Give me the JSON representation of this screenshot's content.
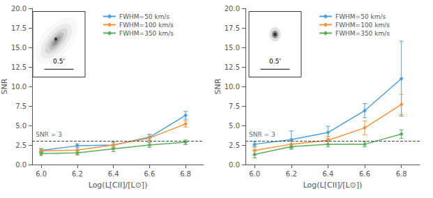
{
  "chart_data": [
    {
      "type": "line",
      "x": [
        6.0,
        6.2,
        6.4,
        6.6,
        6.8
      ],
      "xlabel": "Log(L[CII]/[L⊙])",
      "ylabel": "SNR",
      "xlim": [
        5.95,
        6.9
      ],
      "xticks": [
        {
          "value": 6.0,
          "label": "6.0"
        },
        6.2,
        6.4,
        6.6,
        6.8
      ],
      "ylim": [
        0.0,
        20.0
      ],
      "yticks": [
        {
          "value": 0.0,
          "label": "0.0"
        },
        2.5,
        {
          "value": 5.0,
          "label": "5.0"
        },
        7.5,
        {
          "value": 10.0,
          "label": "10.0"
        },
        12.5,
        {
          "value": 15.0,
          "label": "15.0"
        },
        17.5,
        {
          "value": 20.0,
          "label": "20.0"
        }
      ],
      "grid": false,
      "legend": "upper center",
      "marker": "diamond",
      "series": [
        {
          "name": "FWHM=50 km/s",
          "color": "#4C9FE0",
          "values": [
            1.8,
            2.4,
            2.5,
            3.5,
            6.3
          ],
          "errors": [
            0.25,
            0.25,
            0.35,
            0.4,
            0.5
          ]
        },
        {
          "name": "FWHM=100 km/s",
          "color": "#F5923E",
          "values": [
            1.75,
            1.85,
            2.5,
            3.4,
            5.2
          ],
          "errors": [
            0.25,
            0.6,
            0.4,
            0.45,
            0.4
          ]
        },
        {
          "name": "FWHM=350 km/s",
          "color": "#5BAD5B",
          "values": [
            1.4,
            1.5,
            2.0,
            2.5,
            2.85
          ],
          "errors": [
            0.25,
            0.25,
            0.35,
            0.3,
            0.3
          ]
        }
      ],
      "reference_lines": [
        {
          "y": 3.0,
          "label": "SNR = 3",
          "line_style": "dashed"
        }
      ],
      "inset": {
        "scale_bar_label": "0.5'"
      }
    },
    {
      "type": "line",
      "x": [
        6.0,
        6.2,
        6.4,
        6.6,
        6.8
      ],
      "xlabel": "Log(L[CII]/[L⊙])",
      "ylabel": "SNR",
      "xlim": [
        5.95,
        6.9
      ],
      "xticks": [
        {
          "value": 6.0,
          "label": "6.0"
        },
        6.2,
        6.4,
        6.6,
        6.8
      ],
      "ylim": [
        0.0,
        20.0
      ],
      "yticks": [
        {
          "value": 0.0,
          "label": "0.0"
        },
        2.5,
        {
          "value": 5.0,
          "label": "5.0"
        },
        7.5,
        {
          "value": 10.0,
          "label": "10.0"
        },
        12.5,
        {
          "value": 15.0,
          "label": "15.0"
        },
        17.5,
        {
          "value": 20.0,
          "label": "20.0"
        }
      ],
      "grid": false,
      "legend": "upper center",
      "marker": "diamond",
      "series": [
        {
          "name": "FWHM=50 km/s",
          "color": "#4C9FE0",
          "values": [
            2.6,
            3.2,
            4.1,
            6.9,
            11.0
          ],
          "errors": [
            0.35,
            1.1,
            0.8,
            0.9,
            4.8
          ]
        },
        {
          "name": "FWHM=100 km/s",
          "color": "#F5923E",
          "values": [
            1.8,
            2.6,
            3.1,
            4.7,
            7.7
          ],
          "errors": [
            0.6,
            0.4,
            0.5,
            0.9,
            1.3
          ]
        },
        {
          "name": "FWHM=350 km/s",
          "color": "#5BAD5B",
          "values": [
            1.3,
            2.3,
            2.6,
            2.6,
            3.9
          ],
          "errors": [
            0.45,
            0.35,
            0.35,
            0.35,
            0.55
          ]
        }
      ],
      "reference_lines": [
        {
          "y": 3.0,
          "label": "SNR = 3",
          "line_style": "dashed"
        }
      ],
      "inset": {
        "scale_bar_label": "0.5'"
      }
    }
  ]
}
